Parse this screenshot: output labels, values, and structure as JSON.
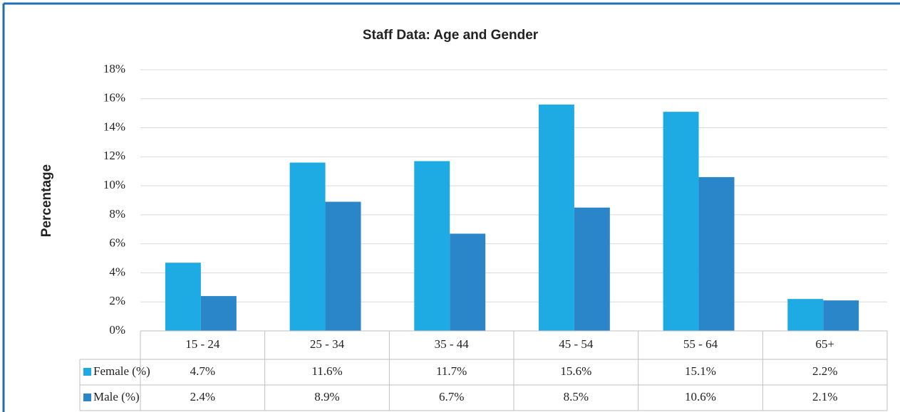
{
  "chart_data": {
    "type": "bar",
    "title": "Staff Data: Age and Gender",
    "y_label": "Percentage",
    "categories": [
      "15 - 24",
      "25 - 34",
      "35 - 44",
      "45 - 54",
      "55 - 64",
      "65+"
    ],
    "series": [
      {
        "name": "Female (%)",
        "color": "#1eabe3",
        "values": [
          4.7,
          11.6,
          11.7,
          15.6,
          15.1,
          2.2
        ],
        "value_labels": [
          "4.7%",
          "11.6%",
          "11.7%",
          "15.6%",
          "15.1%",
          "2.2%"
        ]
      },
      {
        "name": "Male (%)",
        "color": "#2a86c8",
        "values": [
          2.4,
          8.9,
          6.7,
          8.5,
          10.6,
          2.1
        ],
        "value_labels": [
          "2.4%",
          "8.9%",
          "6.7%",
          "8.5%",
          "10.6%",
          "2.1%"
        ]
      }
    ],
    "ylim": [
      0,
      18
    ],
    "yticks": [
      {
        "value": 0,
        "label": "0%"
      },
      {
        "value": 2,
        "label": "2%"
      },
      {
        "value": 4,
        "label": "4%"
      },
      {
        "value": 6,
        "label": "6%"
      },
      {
        "value": 8,
        "label": "8%"
      },
      {
        "value": 10,
        "label": "10%"
      },
      {
        "value": 12,
        "label": "12%"
      },
      {
        "value": 14,
        "label": "14%"
      },
      {
        "value": 16,
        "label": "16%"
      },
      {
        "value": 18,
        "label": "18%"
      }
    ],
    "grid": true
  }
}
